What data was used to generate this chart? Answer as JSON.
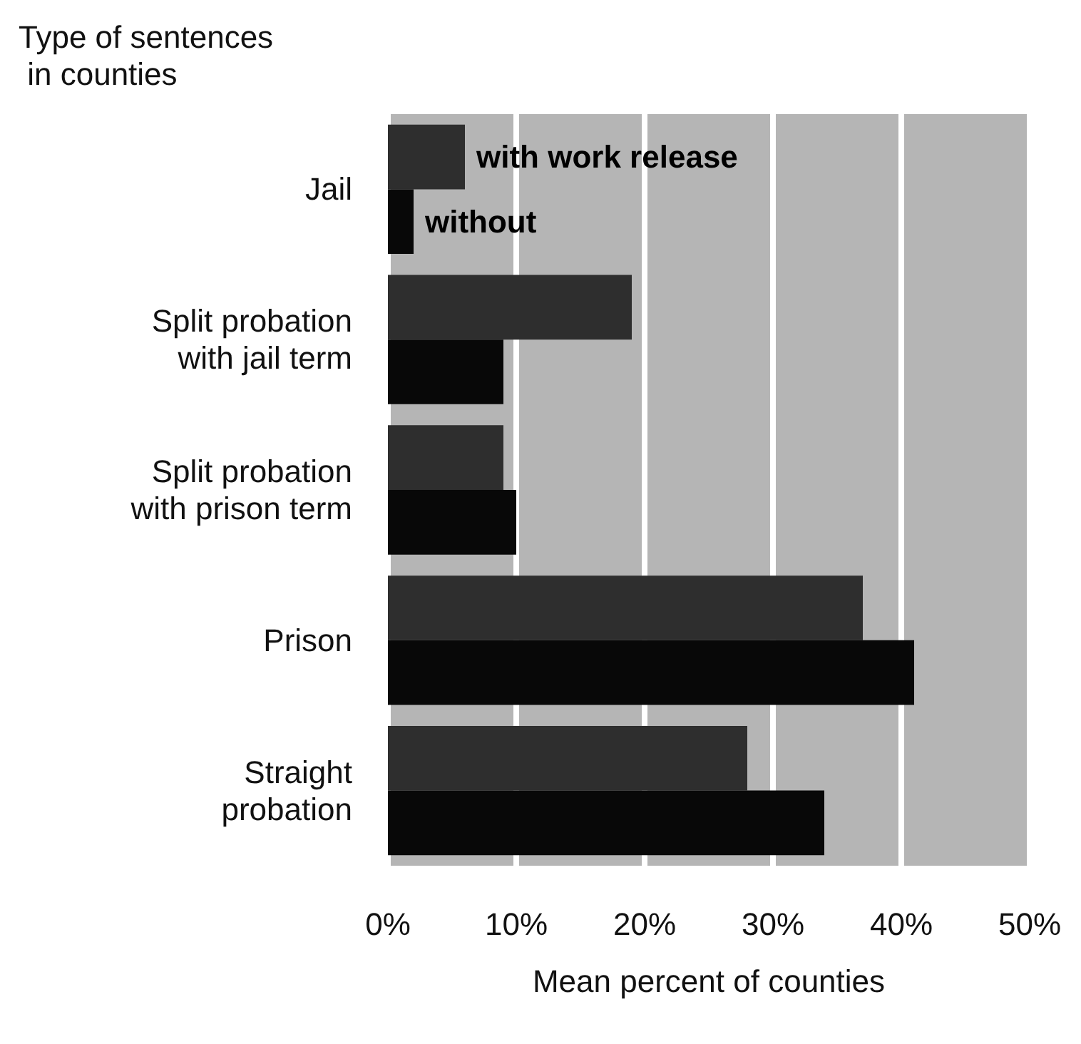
{
  "chart_data": {
    "type": "bar",
    "orientation": "horizontal",
    "ylabel": "Type of sentences\n in counties",
    "xlabel": "Mean percent of counties",
    "categories": [
      "Jail",
      "Split probation\nwith jail term",
      "Split probation\nwith prison term",
      "Prison",
      "Straight\nprobation"
    ],
    "series": [
      {
        "name": "with work release",
        "color": "#2e2e2e",
        "values": [
          6,
          19,
          9,
          37,
          28
        ]
      },
      {
        "name": "without",
        "color": "#080808",
        "values": [
          2,
          9,
          10,
          41,
          34
        ]
      }
    ],
    "xlim": [
      0,
      50
    ],
    "xticks": [
      {
        "value": 0,
        "label": "0%"
      },
      {
        "value": 10,
        "label": "10%"
      },
      {
        "value": 20,
        "label": "20%"
      },
      {
        "value": 30,
        "label": "30%"
      },
      {
        "value": 40,
        "label": "40%"
      },
      {
        "value": 50,
        "label": "50%"
      }
    ],
    "grid": "x",
    "legend": false
  }
}
